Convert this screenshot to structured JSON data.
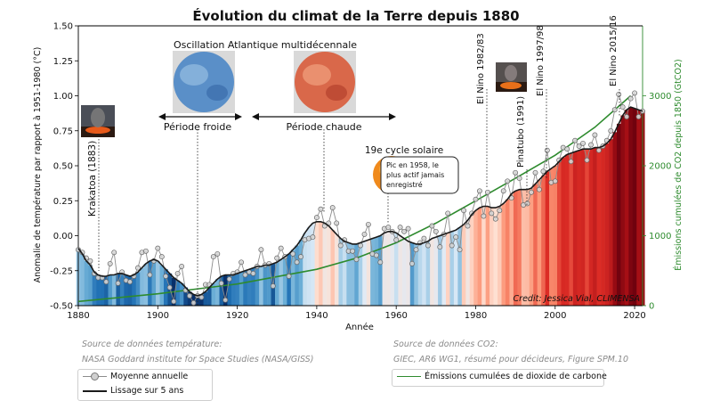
{
  "chart_data": {
    "type": "line",
    "title": "Évolution du climat de la Terre depuis 1880",
    "xlabel": "Année",
    "ylabel": "Anomalie de température par rapport à 1951-1980 (°C)",
    "y2label": "Émissions cumulées de CO2 depuis 1850 (GtCO2)",
    "xlim": [
      1880,
      2022
    ],
    "ylim": [
      -0.5,
      1.5
    ],
    "y2lim": [
      0,
      4000
    ],
    "x_ticks": [
      "1880",
      "1900",
      "1920",
      "1940",
      "1960",
      "1980",
      "2000",
      "2020"
    ],
    "y_ticks": [
      "-0.50",
      "-0.25",
      "0.00",
      "0.25",
      "0.50",
      "0.75",
      "1.00",
      "1.25",
      "1.50"
    ],
    "y2_ticks": [
      "0",
      "1000",
      "2000",
      "3000"
    ],
    "years_start": 1880,
    "annual_mean": [
      -0.1,
      -0.12,
      -0.16,
      -0.18,
      -0.27,
      -0.3,
      -0.3,
      -0.33,
      -0.2,
      -0.12,
      -0.34,
      -0.26,
      -0.32,
      -0.33,
      -0.29,
      -0.23,
      -0.12,
      -0.11,
      -0.28,
      -0.18,
      -0.09,
      -0.15,
      -0.29,
      -0.37,
      -0.47,
      -0.27,
      -0.22,
      -0.39,
      -0.43,
      -0.48,
      -0.43,
      -0.44,
      -0.35,
      -0.35,
      -0.15,
      -0.13,
      -0.34,
      -0.46,
      -0.31,
      -0.27,
      -0.26,
      -0.19,
      -0.28,
      -0.26,
      -0.27,
      -0.22,
      -0.1,
      -0.21,
      -0.2,
      -0.36,
      -0.16,
      -0.09,
      -0.15,
      -0.29,
      -0.13,
      -0.19,
      -0.15,
      -0.03,
      -0.02,
      -0.01,
      0.13,
      0.19,
      0.07,
      0.09,
      0.2,
      0.09,
      -0.07,
      -0.03,
      -0.11,
      -0.11,
      -0.17,
      -0.07,
      0.01,
      0.08,
      -0.13,
      -0.14,
      -0.19,
      0.05,
      0.06,
      0.03,
      -0.03,
      0.06,
      0.03,
      0.05,
      -0.2,
      -0.1,
      -0.05,
      -0.02,
      -0.07,
      0.07,
      0.03,
      -0.08,
      0.01,
      0.16,
      -0.07,
      -0.01,
      -0.1,
      0.18,
      0.07,
      0.16,
      0.26,
      0.32,
      0.14,
      0.31,
      0.16,
      0.12,
      0.18,
      0.32,
      0.39,
      0.27,
      0.45,
      0.41,
      0.22,
      0.23,
      0.31,
      0.45,
      0.33,
      0.46,
      0.61,
      0.38,
      0.39,
      0.54,
      0.63,
      0.62,
      0.53,
      0.68,
      0.64,
      0.66,
      0.54,
      0.65,
      0.72,
      0.61,
      0.64,
      0.68,
      0.75,
      0.9,
      1.01,
      0.92,
      0.85,
      0.98,
      1.02,
      0.85,
      0.89
    ],
    "smooth_5yr": [
      -0.09,
      -0.13,
      -0.18,
      -0.21,
      -0.26,
      -0.28,
      -0.29,
      -0.29,
      -0.28,
      -0.28,
      -0.27,
      -0.27,
      -0.28,
      -0.29,
      -0.28,
      -0.26,
      -0.23,
      -0.2,
      -0.18,
      -0.17,
      -0.18,
      -0.21,
      -0.24,
      -0.27,
      -0.3,
      -0.32,
      -0.34,
      -0.37,
      -0.4,
      -0.42,
      -0.43,
      -0.42,
      -0.4,
      -0.37,
      -0.34,
      -0.31,
      -0.29,
      -0.28,
      -0.28,
      -0.28,
      -0.27,
      -0.26,
      -0.25,
      -0.24,
      -0.23,
      -0.22,
      -0.22,
      -0.21,
      -0.21,
      -0.2,
      -0.19,
      -0.17,
      -0.15,
      -0.13,
      -0.1,
      -0.07,
      -0.03,
      0.02,
      0.06,
      0.09,
      0.1,
      0.1,
      0.09,
      0.07,
      0.04,
      0.01,
      -0.02,
      -0.04,
      -0.05,
      -0.06,
      -0.06,
      -0.05,
      -0.04,
      -0.03,
      -0.02,
      -0.01,
      0.0,
      0.02,
      0.03,
      0.03,
      0.02,
      0.0,
      -0.02,
      -0.04,
      -0.05,
      -0.06,
      -0.06,
      -0.05,
      -0.04,
      -0.02,
      -0.01,
      0.0,
      0.01,
      0.02,
      0.03,
      0.04,
      0.06,
      0.08,
      0.11,
      0.15,
      0.18,
      0.2,
      0.21,
      0.21,
      0.2,
      0.2,
      0.21,
      0.23,
      0.26,
      0.3,
      0.32,
      0.33,
      0.33,
      0.33,
      0.34,
      0.37,
      0.4,
      0.43,
      0.46,
      0.48,
      0.5,
      0.53,
      0.56,
      0.58,
      0.59,
      0.6,
      0.61,
      0.62,
      0.62,
      0.62,
      0.63,
      0.63,
      0.64,
      0.66,
      0.69,
      0.74,
      0.8,
      0.86,
      0.9,
      0.92,
      0.91,
      0.9,
      0.89
    ],
    "co2_cumulative_gtco2": [
      {
        "x": 1880,
        "y": 60
      },
      {
        "x": 1900,
        "y": 170
      },
      {
        "x": 1920,
        "y": 310
      },
      {
        "x": 1940,
        "y": 520
      },
      {
        "x": 1950,
        "y": 680
      },
      {
        "x": 1960,
        "y": 900
      },
      {
        "x": 1970,
        "y": 1180
      },
      {
        "x": 1980,
        "y": 1500
      },
      {
        "x": 1990,
        "y": 1820
      },
      {
        "x": 2000,
        "y": 2150
      },
      {
        "x": 2010,
        "y": 2550
      },
      {
        "x": 2019,
        "y": 3000
      }
    ],
    "legend": {
      "temperature": [
        "Moyenne annuelle",
        "Lissage sur 5 ans"
      ],
      "co2": [
        "Émissions cumulées de dioxide de carbone"
      ]
    },
    "colors": {
      "annual": "#8c8c8c",
      "smooth": "#1a1a1a",
      "co2": "#2e8b2e",
      "cold": "#08519c",
      "warm": "#67000d",
      "axis2": "#2e8b2e"
    }
  },
  "annotations": {
    "krakatoa": "Krakatoa (1883)",
    "oscillation": "Oscillation Atlantique multidécennale",
    "cold_period": "Période froide",
    "warm_period": "Période chaude",
    "solar_cycle": "19e cycle solaire",
    "solar_note": [
      "Pic en 1958, le",
      "plus actif jamais",
      "enregistré"
    ],
    "el_nino_1": "El Nino 1982/83",
    "pinatubo": "Pinatubo (1991)",
    "el_nino_2": "El Nino 1997/98",
    "el_nino_3": "El Nino 2015/16",
    "credit": "Credit: Jessica Vial, CLIMENSA"
  },
  "sources": {
    "temp_title": "Source de données température:",
    "temp_source": "NASA Goddard institute for Space Studies (NASA/GISS)",
    "co2_title": "Source de données CO2:",
    "co2_source": "GIEC, AR6 WG1, résumé pour décideurs, Figure SPM.10"
  }
}
